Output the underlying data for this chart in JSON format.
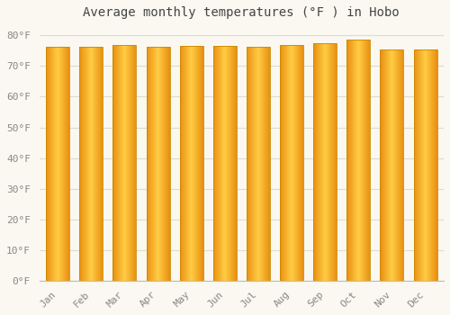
{
  "months": [
    "Jan",
    "Feb",
    "Mar",
    "Apr",
    "May",
    "Jun",
    "Jul",
    "Aug",
    "Sep",
    "Oct",
    "Nov",
    "Dec"
  ],
  "values": [
    76.3,
    76.3,
    77.0,
    76.3,
    76.5,
    76.5,
    76.3,
    77.0,
    77.5,
    78.5,
    75.5,
    75.5
  ],
  "bar_color_center": "#FFCC44",
  "bar_color_edge": "#E89010",
  "bar_edge_color": "#CC8800",
  "background_color": "#FAF8F0",
  "grid_color": "#DDDDCC",
  "title": "Average monthly temperatures (°F ) in Hobo",
  "title_fontsize": 10,
  "tick_label_fontsize": 8,
  "ytick_labels": [
    "0°F",
    "10°F",
    "20°F",
    "30°F",
    "40°F",
    "50°F",
    "60°F",
    "70°F",
    "80°F"
  ],
  "ytick_values": [
    0,
    10,
    20,
    30,
    40,
    50,
    60,
    70,
    80
  ],
  "ylim": [
    0,
    83
  ],
  "title_color": "#444444",
  "tick_color": "#888888",
  "font_family": "monospace",
  "bar_width": 0.7,
  "figsize": [
    5.0,
    3.5
  ],
  "dpi": 100
}
